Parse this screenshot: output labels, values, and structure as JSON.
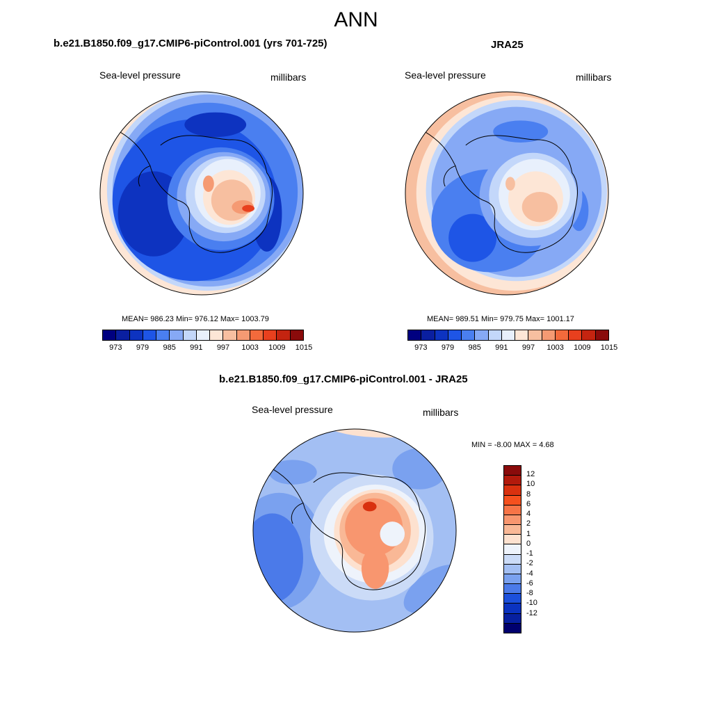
{
  "page": {
    "title": "ANN"
  },
  "panels": [
    {
      "title": "b.e21.B1850.f09_g17.CMIP6-piControl.001 (yrs 701-725)",
      "variable": "Sea-level pressure",
      "units": "millibars",
      "stats_text": "MEAN= 986.23  Min= 976.12  Max= 1003.79",
      "stats": {
        "mean": 986.23,
        "min": 976.12,
        "max": 1003.79
      }
    },
    {
      "title": "JRA25",
      "variable": "Sea-level pressure",
      "units": "millibars",
      "stats_text": "MEAN= 989.51  Min= 979.75  Max= 1001.17",
      "stats": {
        "mean": 989.51,
        "min": 979.75,
        "max": 1001.17
      }
    },
    {
      "title": "b.e21.B1850.f09_g17.CMIP6-piControl.001 - JRA25",
      "variable": "Sea-level pressure",
      "units": "millibars",
      "stats_text": "MIN =  -8.00 MAX =   4.68",
      "stats": {
        "min": -8.0,
        "max": 4.68
      }
    }
  ],
  "colorbar_abs": {
    "colors": [
      "#000080",
      "#0a1fa0",
      "#0d33c0",
      "#1e55e6",
      "#4a7ff0",
      "#86a9f5",
      "#c3d7fa",
      "#e8f0fc",
      "#fde6d6",
      "#f7bfa0",
      "#f59a73",
      "#f26a3c",
      "#e8401e",
      "#c42410",
      "#8a0b0b"
    ],
    "ticks": [
      "973",
      "979",
      "985",
      "991",
      "997",
      "1003",
      "1009",
      "1015"
    ]
  },
  "colorbar_diff": {
    "colors": [
      "#8a0b0b",
      "#b21a0c",
      "#d9310f",
      "#f5501e",
      "#f77447",
      "#f8966f",
      "#f9b896",
      "#fde1cf",
      "#eef3fb",
      "#cbdbf7",
      "#a3bff3",
      "#7aa1ef",
      "#4b7ae9",
      "#1c50dc",
      "#0b33c0",
      "#0720a0",
      "#00006e"
    ],
    "ticks": [
      "12",
      "10",
      "8",
      "6",
      "4",
      "2",
      "1",
      "0",
      "-1",
      "-2",
      "-4",
      "-6",
      "-8",
      "-10",
      "-12"
    ]
  }
}
